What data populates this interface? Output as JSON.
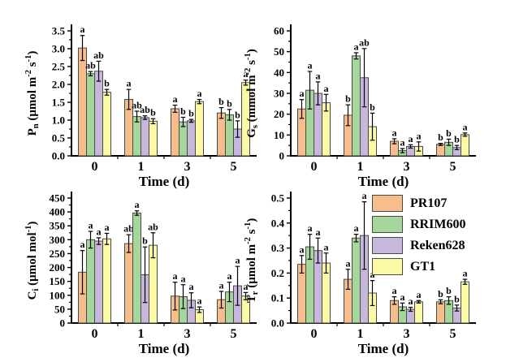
{
  "figure": {
    "background": "#ffffff",
    "xlabel": "Time (d)",
    "categories": [
      "0",
      "1",
      "3",
      "5"
    ],
    "series_names": [
      "PR107",
      "RRIM600",
      "Reken628",
      "GT1"
    ],
    "colors": [
      "#F7BE8D",
      "#A5D69B",
      "#C8B7DC",
      "#FBF9A5"
    ],
    "bar_edge_color": "#4a4a42",
    "axis_color": "#000000",
    "error_bar_color": "#000000"
  },
  "legend": {
    "items": [
      {
        "label": "PR107",
        "color": "#F7BE8D"
      },
      {
        "label": "RRIM600",
        "color": "#A5D69B"
      },
      {
        "label": "Reken628",
        "color": "#C8B7DC"
      },
      {
        "label": "GT1",
        "color": "#FBF9A5"
      }
    ]
  },
  "chart_data": [
    {
      "type": "bar",
      "name": "Pn",
      "position": "top-left",
      "xlabel": "Time (d)",
      "ylabel": "Pn (μmol m⁻² s⁻¹)",
      "ylabel_parts": [
        {
          "t": "P"
        },
        {
          "t": "n",
          "sub": true
        },
        {
          "t": " (μmol m"
        },
        {
          "t": "-2",
          "sup": true
        },
        {
          "t": " s"
        },
        {
          "t": "-1",
          "sup": true
        },
        {
          "t": ")"
        }
      ],
      "ylim": [
        0,
        3.5
      ],
      "yticks": [
        {
          "v": 0,
          "label": "0.0"
        },
        {
          "v": 0.5,
          "label": "0.5"
        },
        {
          "v": 1,
          "label": "1.0"
        },
        {
          "v": 1.5,
          "label": "1.5"
        },
        {
          "v": 2,
          "label": "2.0"
        },
        {
          "v": 2.5,
          "label": "2.5"
        },
        {
          "v": 3,
          "label": "3.0"
        },
        {
          "v": 3.5,
          "label": "3.5"
        }
      ],
      "categories": [
        "0",
        "1",
        "3",
        "5"
      ],
      "series": [
        {
          "name": "PR107",
          "values": [
            3.02,
            1.58,
            1.32,
            1.2
          ],
          "errors": [
            0.35,
            0.28,
            0.1,
            0.15
          ],
          "sig_letters": [
            "a",
            "a",
            "a",
            "b"
          ]
        },
        {
          "name": "RRIM600",
          "values": [
            2.3,
            1.1,
            0.95,
            1.15
          ],
          "errors": [
            0.06,
            0.15,
            0.13,
            0.15
          ],
          "sig_letters": [
            "ab",
            "ab",
            "b",
            "b"
          ]
        },
        {
          "name": "Reken628",
          "values": [
            2.37,
            1.07,
            0.98,
            0.75
          ],
          "errors": [
            0.28,
            0.05,
            0.04,
            0.23
          ],
          "sig_letters": [
            "ab",
            "ab",
            "b",
            "b"
          ]
        },
        {
          "name": "GT1",
          "values": [
            1.78,
            0.97,
            1.52,
            2.05
          ],
          "errors": [
            0.08,
            0.07,
            0.06,
            0.07
          ],
          "sig_letters": [
            "b",
            "b",
            "a",
            "a"
          ]
        }
      ]
    },
    {
      "type": "bar",
      "name": "Gs",
      "position": "top-right",
      "xlabel": "Time (d)",
      "ylabel": "Gs (mmol m⁻² s⁻¹)",
      "ylabel_parts": [
        {
          "t": "G"
        },
        {
          "t": "s",
          "sub": true
        },
        {
          "t": " (mmol m"
        },
        {
          "t": "-2",
          "sup": true
        },
        {
          "t": " s"
        },
        {
          "t": "-1",
          "sup": true
        },
        {
          "t": ")"
        }
      ],
      "ylim": [
        0,
        60
      ],
      "yticks": [
        {
          "v": 0,
          "label": "0"
        },
        {
          "v": 10,
          "label": "10"
        },
        {
          "v": 20,
          "label": "20"
        },
        {
          "v": 30,
          "label": "30"
        },
        {
          "v": 40,
          "label": "40"
        },
        {
          "v": 50,
          "label": "50"
        },
        {
          "v": 60,
          "label": "60"
        }
      ],
      "categories": [
        "0",
        "1",
        "3",
        "5"
      ],
      "series": [
        {
          "name": "PR107",
          "values": [
            22.5,
            19.5,
            7.0,
            5.5
          ],
          "errors": [
            4.5,
            5.0,
            1.2,
            0.5
          ],
          "sig_letters": [
            "a",
            "b",
            "a",
            "b"
          ]
        },
        {
          "name": "RRIM600",
          "values": [
            31.5,
            48.0,
            2.5,
            6.5
          ],
          "errors": [
            9.0,
            1.5,
            1.0,
            1.5
          ],
          "sig_letters": [
            "a",
            "a",
            "a",
            "b"
          ]
        },
        {
          "name": "Reken628",
          "values": [
            30.0,
            37.5,
            4.5,
            4.0
          ],
          "errors": [
            5.5,
            14.0,
            0.8,
            1.0
          ],
          "sig_letters": [
            "a",
            "ab",
            "a",
            "b"
          ]
        },
        {
          "name": "GT1",
          "values": [
            25.5,
            14.0,
            4.5,
            10.2
          ],
          "errors": [
            4.0,
            6.5,
            2.2,
            0.8
          ],
          "sig_letters": [
            "a",
            "b",
            "a",
            "a"
          ]
        }
      ]
    },
    {
      "type": "bar",
      "name": "Ci",
      "position": "bottom-left",
      "xlabel": "Time (d)",
      "ylabel": "Ci (μmol mol⁻¹)",
      "ylabel_parts": [
        {
          "t": "C"
        },
        {
          "t": "i",
          "sub": true
        },
        {
          "t": " (μmol mol"
        },
        {
          "t": "-1",
          "sup": true
        },
        {
          "t": ")"
        }
      ],
      "ylim": [
        0,
        450
      ],
      "yticks": [
        {
          "v": 0,
          "label": "0"
        },
        {
          "v": 50,
          "label": "50"
        },
        {
          "v": 100,
          "label": "100"
        },
        {
          "v": 150,
          "label": "150"
        },
        {
          "v": 200,
          "label": "200"
        },
        {
          "v": 250,
          "label": "250"
        },
        {
          "v": 300,
          "label": "300"
        },
        {
          "v": 350,
          "label": "350"
        },
        {
          "v": 400,
          "label": "400"
        },
        {
          "v": 450,
          "label": "450"
        }
      ],
      "categories": [
        "0",
        "1",
        "3",
        "5"
      ],
      "series": [
        {
          "name": "PR107",
          "values": [
            183,
            286,
            97,
            84
          ],
          "errors": [
            78,
            32,
            50,
            30
          ],
          "sig_letters": [
            "a",
            "ab",
            "a",
            "a"
          ]
        },
        {
          "name": "RRIM600",
          "values": [
            300,
            396,
            95,
            112
          ],
          "errors": [
            30,
            8,
            43,
            35
          ],
          "sig_letters": [
            "a",
            "a",
            "a",
            "a"
          ]
        },
        {
          "name": "Reken628",
          "values": [
            295,
            174,
            82,
            134
          ],
          "errors": [
            12,
            100,
            27,
            70
          ],
          "sig_letters": [
            "a",
            "b",
            "a",
            "a"
          ]
        },
        {
          "name": "GT1",
          "values": [
            303,
            280,
            48,
            97
          ],
          "errors": [
            20,
            45,
            10,
            13
          ],
          "sig_letters": [
            "a",
            "ab",
            "a",
            "a"
          ]
        }
      ]
    },
    {
      "type": "bar",
      "name": "Tr",
      "position": "bottom-right",
      "xlabel": "Time (d)",
      "ylabel": "Tr (μmol m⁻² s⁻¹)",
      "ylabel_parts": [
        {
          "t": "T"
        },
        {
          "t": "r",
          "sub": true
        },
        {
          "t": " (μmol m"
        },
        {
          "t": "-2",
          "sup": true
        },
        {
          "t": " s"
        },
        {
          "t": "-1",
          "sup": true
        },
        {
          "t": ")"
        }
      ],
      "ylim": [
        0,
        0.5
      ],
      "yticks": [
        {
          "v": 0,
          "label": "0.0"
        },
        {
          "v": 0.1,
          "label": "0.1"
        },
        {
          "v": 0.2,
          "label": "0.2"
        },
        {
          "v": 0.3,
          "label": "0.3"
        },
        {
          "v": 0.4,
          "label": "0.4"
        },
        {
          "v": 0.5,
          "label": "0.5"
        }
      ],
      "categories": [
        "0",
        "1",
        "3",
        "5"
      ],
      "series": [
        {
          "name": "PR107",
          "values": [
            0.235,
            0.175,
            0.09,
            0.085
          ],
          "errors": [
            0.035,
            0.04,
            0.015,
            0.008
          ],
          "sig_letters": [
            "a",
            "a",
            "a",
            "b"
          ]
        },
        {
          "name": "RRIM600",
          "values": [
            0.305,
            0.34,
            0.065,
            0.09
          ],
          "errors": [
            0.05,
            0.015,
            0.015,
            0.015
          ],
          "sig_letters": [
            "a",
            "a",
            "a",
            "b"
          ]
        },
        {
          "name": "Reken628",
          "values": [
            0.29,
            0.35,
            0.055,
            0.06
          ],
          "errors": [
            0.05,
            0.135,
            0.008,
            0.012
          ],
          "sig_letters": [
            "a",
            "a",
            "a",
            "b"
          ]
        },
        {
          "name": "GT1",
          "values": [
            0.24,
            0.12,
            0.085,
            0.165
          ],
          "errors": [
            0.04,
            0.05,
            0.005,
            0.01
          ],
          "sig_letters": [
            "a",
            "a",
            "a",
            "a"
          ]
        }
      ]
    }
  ]
}
